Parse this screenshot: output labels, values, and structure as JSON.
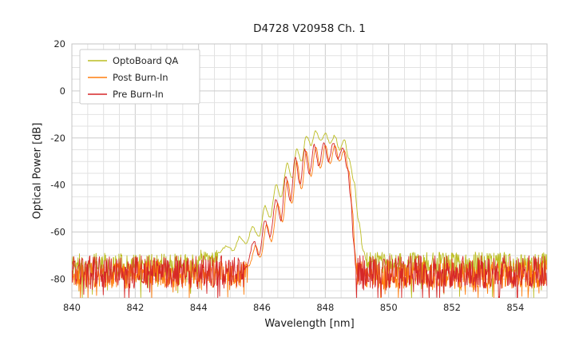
{
  "chart_data": {
    "type": "line",
    "title": "D4728 V20958 Ch. 1",
    "xlabel": "Wavelength [nm]",
    "ylabel": "Optical Power [dB]",
    "xlim": [
      840,
      855
    ],
    "ylim": [
      -88,
      20
    ],
    "x_ticks": [
      840,
      842,
      844,
      846,
      848,
      850,
      852,
      854
    ],
    "y_ticks": [
      20,
      0,
      -20,
      -40,
      -60,
      -80
    ],
    "grid": {
      "minor_x_step": 0.5,
      "minor_y_step": 5,
      "minor_color": "#e2e2e2",
      "major_color": "#cccccc"
    },
    "legend": {
      "position": "upper left",
      "entries": [
        "OptoBoard QA",
        "Post Burn-In",
        "Pre Burn-In"
      ]
    },
    "series": [
      {
        "name": "OptoBoard QA",
        "color": "#bcbd22",
        "seed": 11,
        "segments": [
          {
            "type": "noise",
            "x0": 840.0,
            "x1": 844.0,
            "mean": -74.0,
            "amp": 5.0,
            "spike_chance": 0.09,
            "spike_max": 9
          },
          {
            "type": "noise",
            "x0": 844.0,
            "x1": 844.6,
            "mean": -70.5,
            "amp": 3.0,
            "spike_chance": 0.05,
            "spike_max": 5
          },
          {
            "type": "envelope",
            "points": [
              [
                844.6,
                -69
              ],
              [
                844.9,
                -66
              ],
              [
                845.1,
                -68
              ],
              [
                845.3,
                -62
              ],
              [
                845.5,
                -65
              ],
              [
                845.7,
                -58
              ],
              [
                845.9,
                -62
              ],
              [
                846.1,
                -49
              ],
              [
                846.25,
                -54
              ],
              [
                846.45,
                -40
              ],
              [
                846.6,
                -45
              ],
              [
                846.8,
                -31
              ],
              [
                846.95,
                -37
              ],
              [
                847.1,
                -25
              ],
              [
                847.25,
                -30
              ],
              [
                847.4,
                -19
              ],
              [
                847.55,
                -23
              ],
              [
                847.7,
                -17
              ],
              [
                847.85,
                -21
              ],
              [
                848.0,
                -18
              ],
              [
                848.15,
                -22
              ],
              [
                848.3,
                -19
              ],
              [
                848.45,
                -25
              ],
              [
                848.6,
                -21
              ],
              [
                848.75,
                -29
              ],
              [
                848.9,
                -38
              ],
              [
                849.05,
                -55
              ],
              [
                849.2,
                -68
              ],
              [
                849.3,
                -72
              ]
            ]
          },
          {
            "type": "noise",
            "x0": 849.3,
            "x1": 855.0,
            "mean": -73.5,
            "amp": 5.0,
            "spike_chance": 0.09,
            "spike_max": 9
          }
        ]
      },
      {
        "name": "Post Burn-In",
        "color": "#ff7f0e",
        "seed": 22,
        "segments": [
          {
            "type": "noise",
            "x0": 840.0,
            "x1": 845.55,
            "mean": -78.0,
            "amp": 6.0,
            "spike_chance": 0.08,
            "spike_max": 8
          },
          {
            "type": "envelope",
            "points": [
              [
                845.6,
                -74
              ],
              [
                845.8,
                -66
              ],
              [
                845.95,
                -71
              ],
              [
                846.15,
                -57
              ],
              [
                846.3,
                -64
              ],
              [
                846.5,
                -48
              ],
              [
                846.65,
                -56
              ],
              [
                846.8,
                -38
              ],
              [
                846.95,
                -48
              ],
              [
                847.1,
                -30
              ],
              [
                847.25,
                -42
              ],
              [
                847.4,
                -26
              ],
              [
                847.55,
                -36
              ],
              [
                847.7,
                -24
              ],
              [
                847.85,
                -33
              ],
              [
                848.0,
                -23
              ],
              [
                848.15,
                -31
              ],
              [
                848.3,
                -23
              ],
              [
                848.45,
                -30
              ],
              [
                848.6,
                -25
              ],
              [
                848.75,
                -34
              ],
              [
                848.85,
                -50
              ],
              [
                848.95,
                -70
              ],
              [
                849.0,
                -78
              ]
            ]
          },
          {
            "type": "noise",
            "x0": 849.0,
            "x1": 855.0,
            "mean": -78.0,
            "amp": 6.0,
            "spike_chance": 0.08,
            "spike_max": 8
          }
        ]
      },
      {
        "name": "Pre Burn-In",
        "color": "#d62728",
        "seed": 33,
        "segments": [
          {
            "type": "noise",
            "x0": 840.0,
            "x1": 845.45,
            "mean": -77.0,
            "amp": 7.0,
            "spike_chance": 0.08,
            "spike_max": 9
          },
          {
            "type": "envelope",
            "points": [
              [
                845.5,
                -75
              ],
              [
                845.75,
                -64
              ],
              [
                845.9,
                -70
              ],
              [
                846.1,
                -55
              ],
              [
                846.25,
                -62
              ],
              [
                846.45,
                -46
              ],
              [
                846.6,
                -55
              ],
              [
                846.75,
                -36
              ],
              [
                846.9,
                -47
              ],
              [
                847.05,
                -28
              ],
              [
                847.2,
                -40
              ],
              [
                847.35,
                -25
              ],
              [
                847.5,
                -35
              ],
              [
                847.65,
                -23
              ],
              [
                847.8,
                -32
              ],
              [
                847.95,
                -22
              ],
              [
                848.1,
                -30
              ],
              [
                848.25,
                -22
              ],
              [
                848.4,
                -29
              ],
              [
                848.55,
                -24
              ],
              [
                848.7,
                -33
              ],
              [
                848.8,
                -45
              ],
              [
                848.9,
                -65
              ],
              [
                848.97,
                -76
              ]
            ]
          },
          {
            "type": "noise",
            "x0": 848.97,
            "x1": 855.0,
            "mean": -77.0,
            "amp": 7.0,
            "spike_chance": 0.08,
            "spike_max": 9
          }
        ]
      }
    ]
  }
}
